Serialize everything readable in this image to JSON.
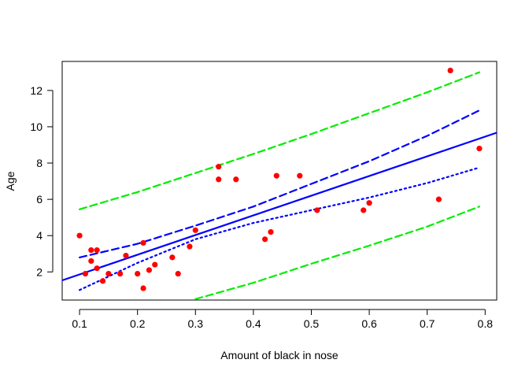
{
  "chart_data": {
    "type": "scatter",
    "title": "",
    "xlabel": "Amount of black in nose",
    "ylabel": "Age",
    "xlim": [
      0.07,
      0.82
    ],
    "ylim": [
      0.45,
      13.6
    ],
    "xticks": [
      0.1,
      0.2,
      0.3,
      0.4,
      0.5,
      0.6,
      0.7,
      0.8
    ],
    "xtick_labels": [
      "0.1",
      "0.2",
      "0.3",
      "0.4",
      "0.5",
      "0.6",
      "0.7",
      "0.8"
    ],
    "yticks": [
      2,
      4,
      6,
      8,
      10,
      12
    ],
    "ytick_labels": [
      "2",
      "4",
      "6",
      "8",
      "10",
      "12"
    ],
    "grid": false,
    "legend": "none",
    "colors": {
      "points": "#ff0000",
      "fit": "#0000ff",
      "confidence": "#0000ff",
      "prediction": "#00ee00"
    },
    "points": {
      "x": [
        0.1,
        0.11,
        0.12,
        0.12,
        0.13,
        0.13,
        0.14,
        0.15,
        0.17,
        0.18,
        0.2,
        0.21,
        0.21,
        0.22,
        0.23,
        0.26,
        0.27,
        0.29,
        0.3,
        0.34,
        0.34,
        0.37,
        0.42,
        0.43,
        0.44,
        0.48,
        0.51,
        0.59,
        0.6,
        0.72,
        0.74,
        0.79
      ],
      "y": [
        4.0,
        1.9,
        3.2,
        2.6,
        3.2,
        2.2,
        1.5,
        1.9,
        1.9,
        2.9,
        1.9,
        3.6,
        1.1,
        2.1,
        2.4,
        2.8,
        1.9,
        3.4,
        4.3,
        7.8,
        7.1,
        7.1,
        3.8,
        4.2,
        7.3,
        7.3,
        5.4,
        5.4,
        5.8,
        6.0,
        13.1,
        8.8
      ]
    },
    "lines": [
      {
        "style": "solid",
        "role": "fit",
        "x": [
          0.05,
          0.85
        ],
        "y": [
          1.32,
          10.0
        ]
      },
      {
        "style": "dashed",
        "role": "confidence-upper",
        "x": [
          0.1,
          0.2,
          0.3,
          0.4,
          0.5,
          0.6,
          0.7,
          0.79
        ],
        "y": [
          2.8,
          3.55,
          4.55,
          5.6,
          6.85,
          8.1,
          9.5,
          10.9
        ]
      },
      {
        "style": "dotted",
        "role": "confidence-lower",
        "x": [
          0.1,
          0.2,
          0.3,
          0.4,
          0.5,
          0.6,
          0.7,
          0.79
        ],
        "y": [
          1.0,
          2.5,
          3.8,
          4.7,
          5.4,
          6.1,
          6.9,
          7.75
        ]
      },
      {
        "style": "dashed",
        "role": "prediction-upper",
        "x": [
          0.1,
          0.2,
          0.3,
          0.4,
          0.5,
          0.6,
          0.7,
          0.79
        ],
        "y": [
          5.45,
          6.4,
          7.45,
          8.5,
          9.6,
          10.75,
          11.9,
          13.0
        ]
      },
      {
        "style": "dashed",
        "role": "prediction-lower",
        "x": [
          0.3,
          0.4,
          0.5,
          0.6,
          0.7,
          0.79
        ],
        "y": [
          0.5,
          1.4,
          2.45,
          3.45,
          4.5,
          5.6
        ]
      }
    ]
  }
}
